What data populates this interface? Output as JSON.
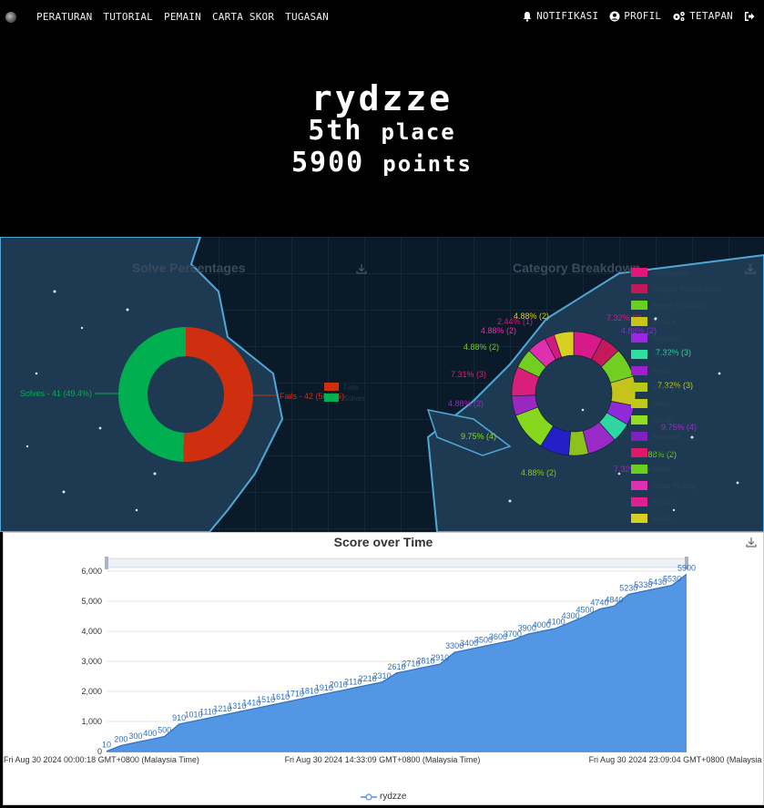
{
  "nav": {
    "links": [
      "PERATURAN",
      "TUTORIAL",
      "PEMAIN",
      "CARTA SKOR",
      "TUGASAN"
    ],
    "notifications": "NOTIFIKASI",
    "profile": "PROFIL",
    "settings": "TETAPAN"
  },
  "hero": {
    "name": "rydzze",
    "place_num": "5th",
    "place_word": "place",
    "points_num": "5900",
    "points_word": "points"
  },
  "solve_panel": {
    "title": "Solve Percentages",
    "chart_data": {
      "type": "pie",
      "title": "Solve Percentages",
      "slices": [
        {
          "name": "Fails",
          "value": 42,
          "percent": 50.6,
          "color": "#cf2e0f"
        },
        {
          "name": "Solves",
          "value": 41,
          "percent": 49.4,
          "color": "#00b050"
        }
      ],
      "labels": [
        "Fails - 42 (50.6%)",
        "Solves - 41 (49.4%)"
      ],
      "legend": [
        "Fails",
        "Solves"
      ]
    }
  },
  "category_panel": {
    "title": "Category Breakdown",
    "chart_data": {
      "type": "pie",
      "title": "Category Breakdown",
      "legend": [
        "Terengganu",
        "Wilayah Persekutuan",
        "Negeri Sembilan",
        "Melaka",
        "Kelantan",
        "Pahang",
        "Perak",
        "Selangor",
        "Johor",
        "Sabah",
        "Sarawak",
        "Kedah",
        "Perlis",
        "Pulau Pinang",
        "Kedah",
        "Sabah"
      ],
      "legend_colors": [
        "#e0187a",
        "#c21858",
        "#6ad020",
        "#c9c31a",
        "#9b28e0",
        "#2ee0a0",
        "#a020d0",
        "#b8c818",
        "#c0c818",
        "#90e020",
        "#8020c0",
        "#e0186a",
        "#6ad020",
        "#e030b0",
        "#e02090",
        "#d8d020"
      ],
      "visible_labels": [
        "7.32% (3)",
        "4.88% (2)",
        "7.32% (3)",
        "7.32% (3)",
        "9.75% (4)",
        "4.88% (2)",
        "7.32% (3)",
        "4.88% (2)",
        "9.75% (4)",
        "4.88% (2)",
        "7.31% (3)",
        "4.88% (2)",
        "4.88% (2)",
        "2.44% (1)",
        "4.88% (2)"
      ]
    }
  },
  "score_panel": {
    "title": "Score over Time",
    "legend": "rydzze",
    "chart_data": {
      "type": "area",
      "title": "Score over Time",
      "ylim": [
        0,
        6000
      ],
      "yticks": [
        0,
        1000,
        2000,
        3000,
        4000,
        5000,
        6000
      ],
      "ytick_labels": [
        "0",
        "1,000",
        "2,000",
        "3,000",
        "4,000",
        "5,000",
        "6,000"
      ],
      "xtick_labels": [
        "Fri Aug 30 2024 00:00:18 GMT+0800 (Malaysia Time)",
        "Fri Aug 30 2024 14:33:09 GMT+0800 (Malaysia Time)",
        "Fri Aug 30 2024 23:09:04 GMT+0800 (Malaysia Time)"
      ],
      "series": [
        {
          "name": "rydzze",
          "color": "#4a90e2",
          "values": [
            10,
            200,
            300,
            400,
            500,
            910,
            1010,
            1110,
            1210,
            1310,
            1410,
            1510,
            1610,
            1710,
            1810,
            1910,
            2010,
            2110,
            2210,
            2310,
            2610,
            2710,
            2810,
            2910,
            3300,
            3400,
            3500,
            3600,
            3700,
            3900,
            4000,
            4100,
            4300,
            4500,
            4740,
            4840,
            5230,
            5330,
            5430,
            5530,
            5900
          ]
        }
      ]
    }
  }
}
